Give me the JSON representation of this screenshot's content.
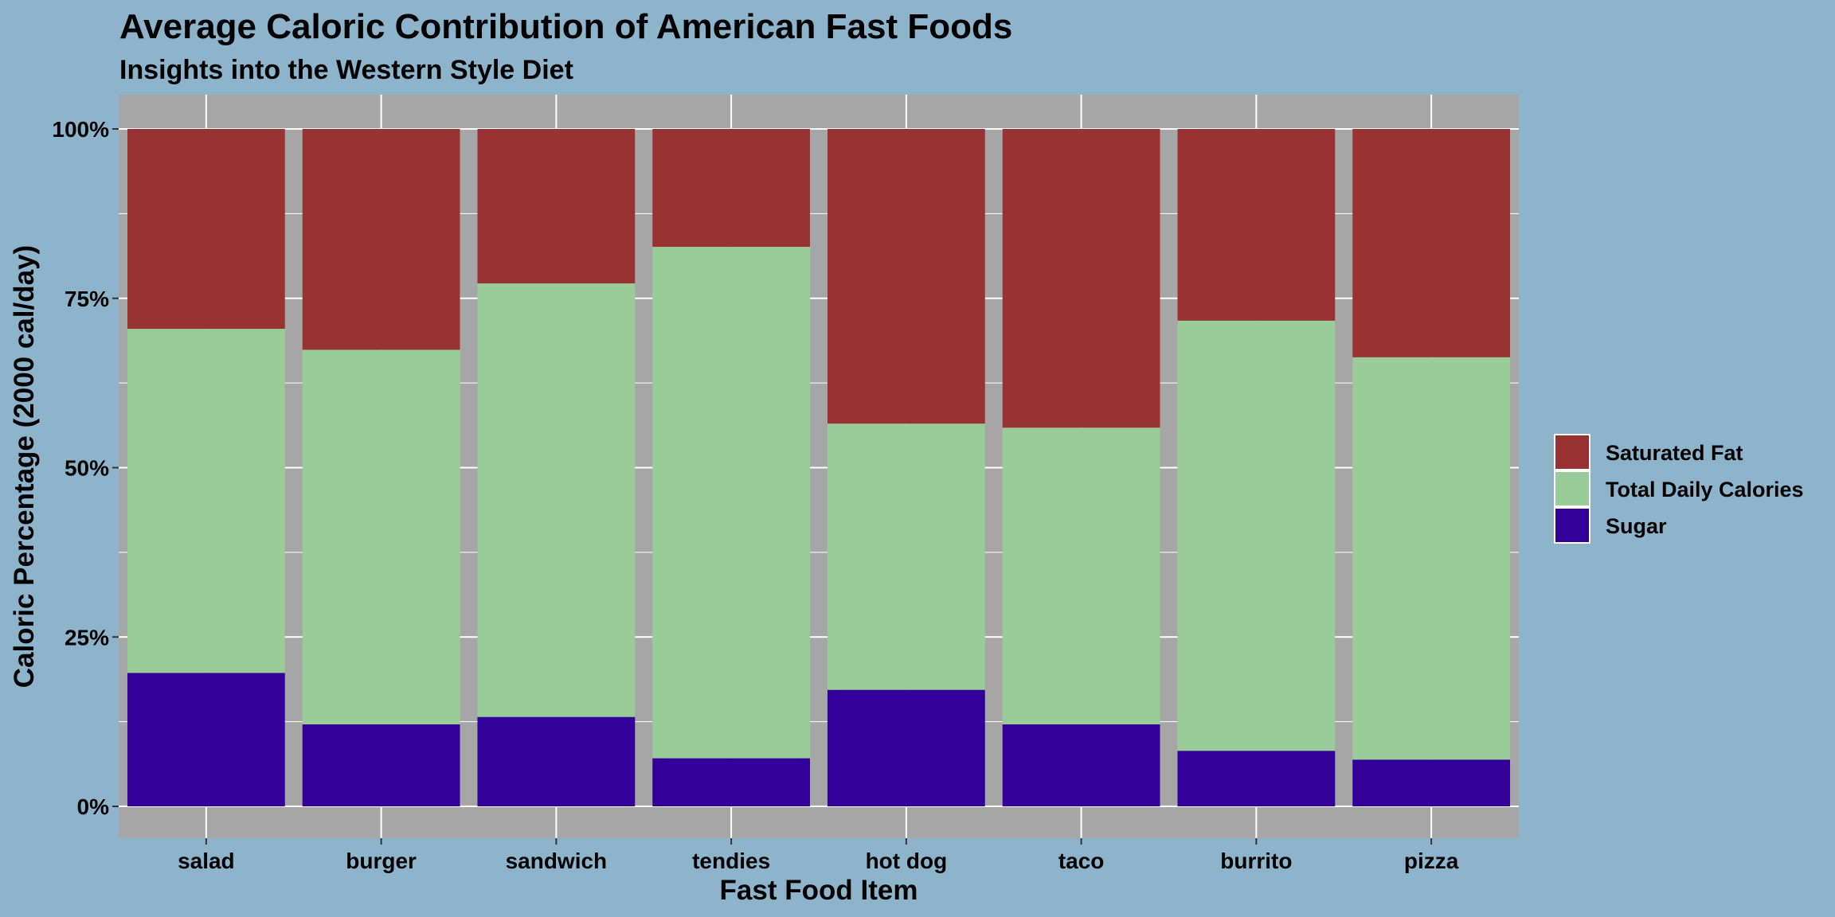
{
  "chart_data": {
    "type": "bar",
    "stacked": true,
    "percent": true,
    "title": "Average Caloric Contribution of American Fast Foods",
    "subtitle": "Insights into the Western Style Diet",
    "xlabel": "Fast Food Item",
    "ylabel": "Caloric Percentage (2000 cal/day)",
    "ylim": [
      0,
      100
    ],
    "yticks": [
      "0%",
      "25%",
      "50%",
      "75%",
      "100%"
    ],
    "ytick_values": [
      0,
      25,
      50,
      75,
      100
    ],
    "grid": true,
    "legend_position": "right",
    "categories": [
      "salad",
      "burger",
      "sandwich",
      "tendies",
      "hot dog",
      "taco",
      "burrito",
      "pizza"
    ],
    "series": [
      {
        "name": "Sugar",
        "color": "#330099",
        "values": [
          19.7,
          12.1,
          13.2,
          7.1,
          17.2,
          12.1,
          8.2,
          6.9
        ]
      },
      {
        "name": "Total Daily Calories",
        "color": "#99cc99",
        "values": [
          50.8,
          55.3,
          64.0,
          75.5,
          39.3,
          43.8,
          63.5,
          59.4
        ]
      },
      {
        "name": "Saturated Fat",
        "color": "#993333",
        "values": [
          29.5,
          32.6,
          22.8,
          17.4,
          43.5,
          44.1,
          28.3,
          33.7
        ]
      }
    ],
    "legend_order": [
      "Saturated Fat",
      "Total Daily Calories",
      "Sugar"
    ]
  },
  "colors": {
    "page_background": "#8db4cb",
    "panel_background": "#a6a6a6",
    "grid": "#ffffff"
  }
}
